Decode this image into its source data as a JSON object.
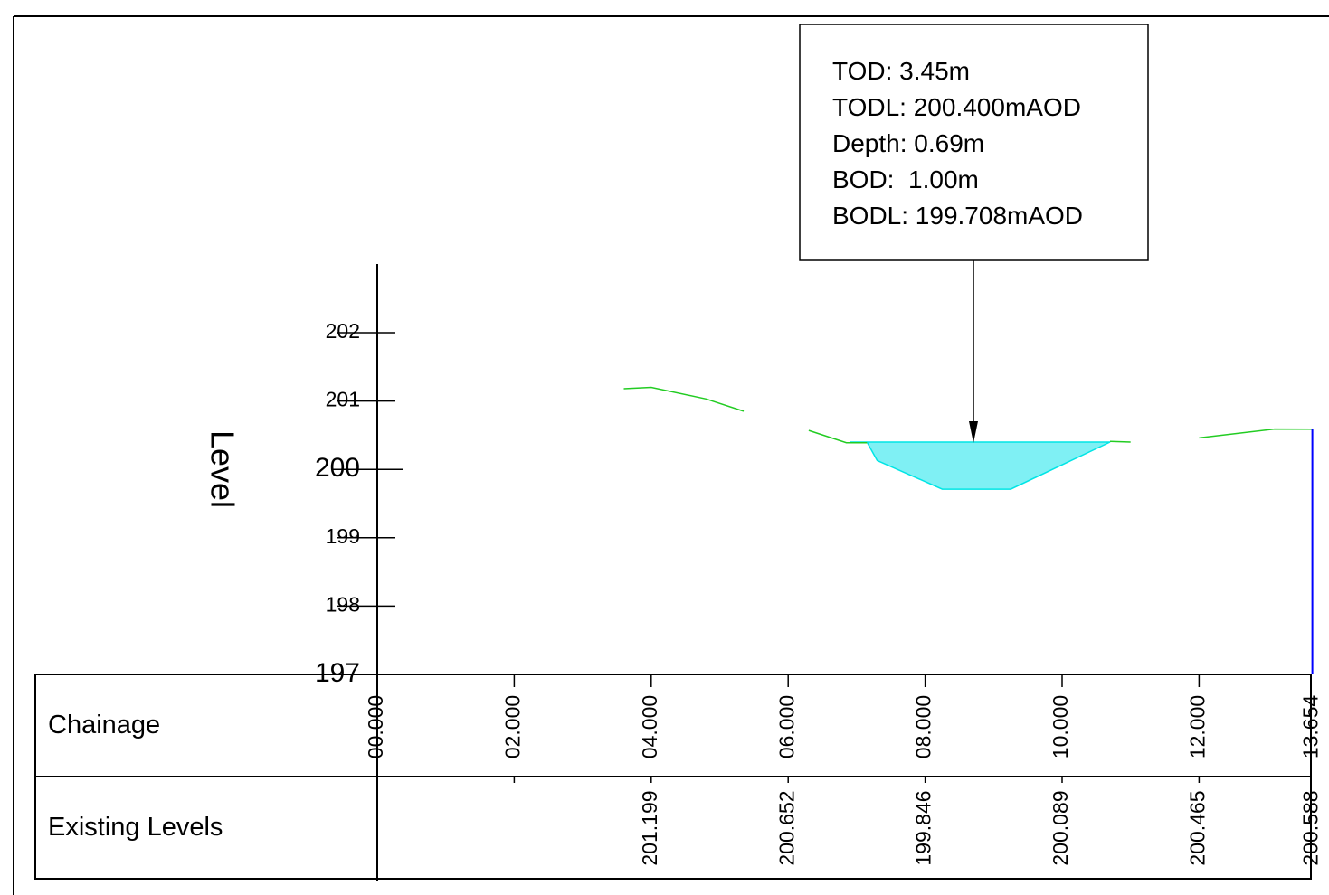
{
  "callout": {
    "lines": [
      "TOD: 3.45m",
      "TODL: 200.400mAOD",
      "Depth: 0.69m",
      "BOD:  1.00m",
      "BODL: 199.708mAOD"
    ]
  },
  "axis": {
    "label": "Level",
    "ticks": [
      "202",
      "201",
      "200",
      "199",
      "198",
      "197"
    ],
    "tick_values": [
      202,
      201,
      200,
      199,
      198,
      197
    ]
  },
  "table": {
    "row_labels": {
      "chainage": "Chainage",
      "levels": "Existing Levels"
    },
    "chainage": [
      {
        "label": "00.000",
        "ch": 0
      },
      {
        "label": "02.000",
        "ch": 2
      },
      {
        "label": "04.000",
        "ch": 4
      },
      {
        "label": "06.000",
        "ch": 6
      },
      {
        "label": "08.000",
        "ch": 8
      },
      {
        "label": "10.000",
        "ch": 10
      },
      {
        "label": "12.000",
        "ch": 12
      },
      {
        "label": "13.654",
        "ch": 13.654
      }
    ],
    "levels": [
      {
        "label": "201.199",
        "ch": 4
      },
      {
        "label": "200.652",
        "ch": 6
      },
      {
        "label": "199.846",
        "ch": 8
      },
      {
        "label": "200.089",
        "ch": 10
      },
      {
        "label": "200.465",
        "ch": 12
      },
      {
        "label": "200.588",
        "ch": 13.654
      }
    ]
  },
  "profile": {
    "ground_color": "#22cc22",
    "water_color": "#7ff0f4",
    "water_edge": "#00e5e5",
    "end_line_color": "#0000ff",
    "ground_segments": [
      [
        [
          3.6,
          201.18
        ],
        [
          4.0,
          201.2
        ],
        [
          4.8,
          201.03
        ],
        [
          5.35,
          200.85
        ]
      ],
      [
        [
          6.3,
          200.57
        ],
        [
          6.85,
          200.39
        ],
        [
          7.15,
          200.39
        ]
      ],
      [
        [
          10.7,
          200.41
        ],
        [
          11.0,
          200.4
        ]
      ],
      [
        [
          12.0,
          200.46
        ],
        [
          13.1,
          200.59
        ],
        [
          13.654,
          200.588
        ]
      ]
    ],
    "water_polygon": [
      [
        6.9,
        200.4
      ],
      [
        10.7,
        200.4
      ],
      [
        9.25,
        199.71
      ],
      [
        8.25,
        199.71
      ],
      [
        7.3,
        200.13
      ],
      [
        7.15,
        200.4
      ]
    ],
    "arrow_ch": 8.75
  }
}
